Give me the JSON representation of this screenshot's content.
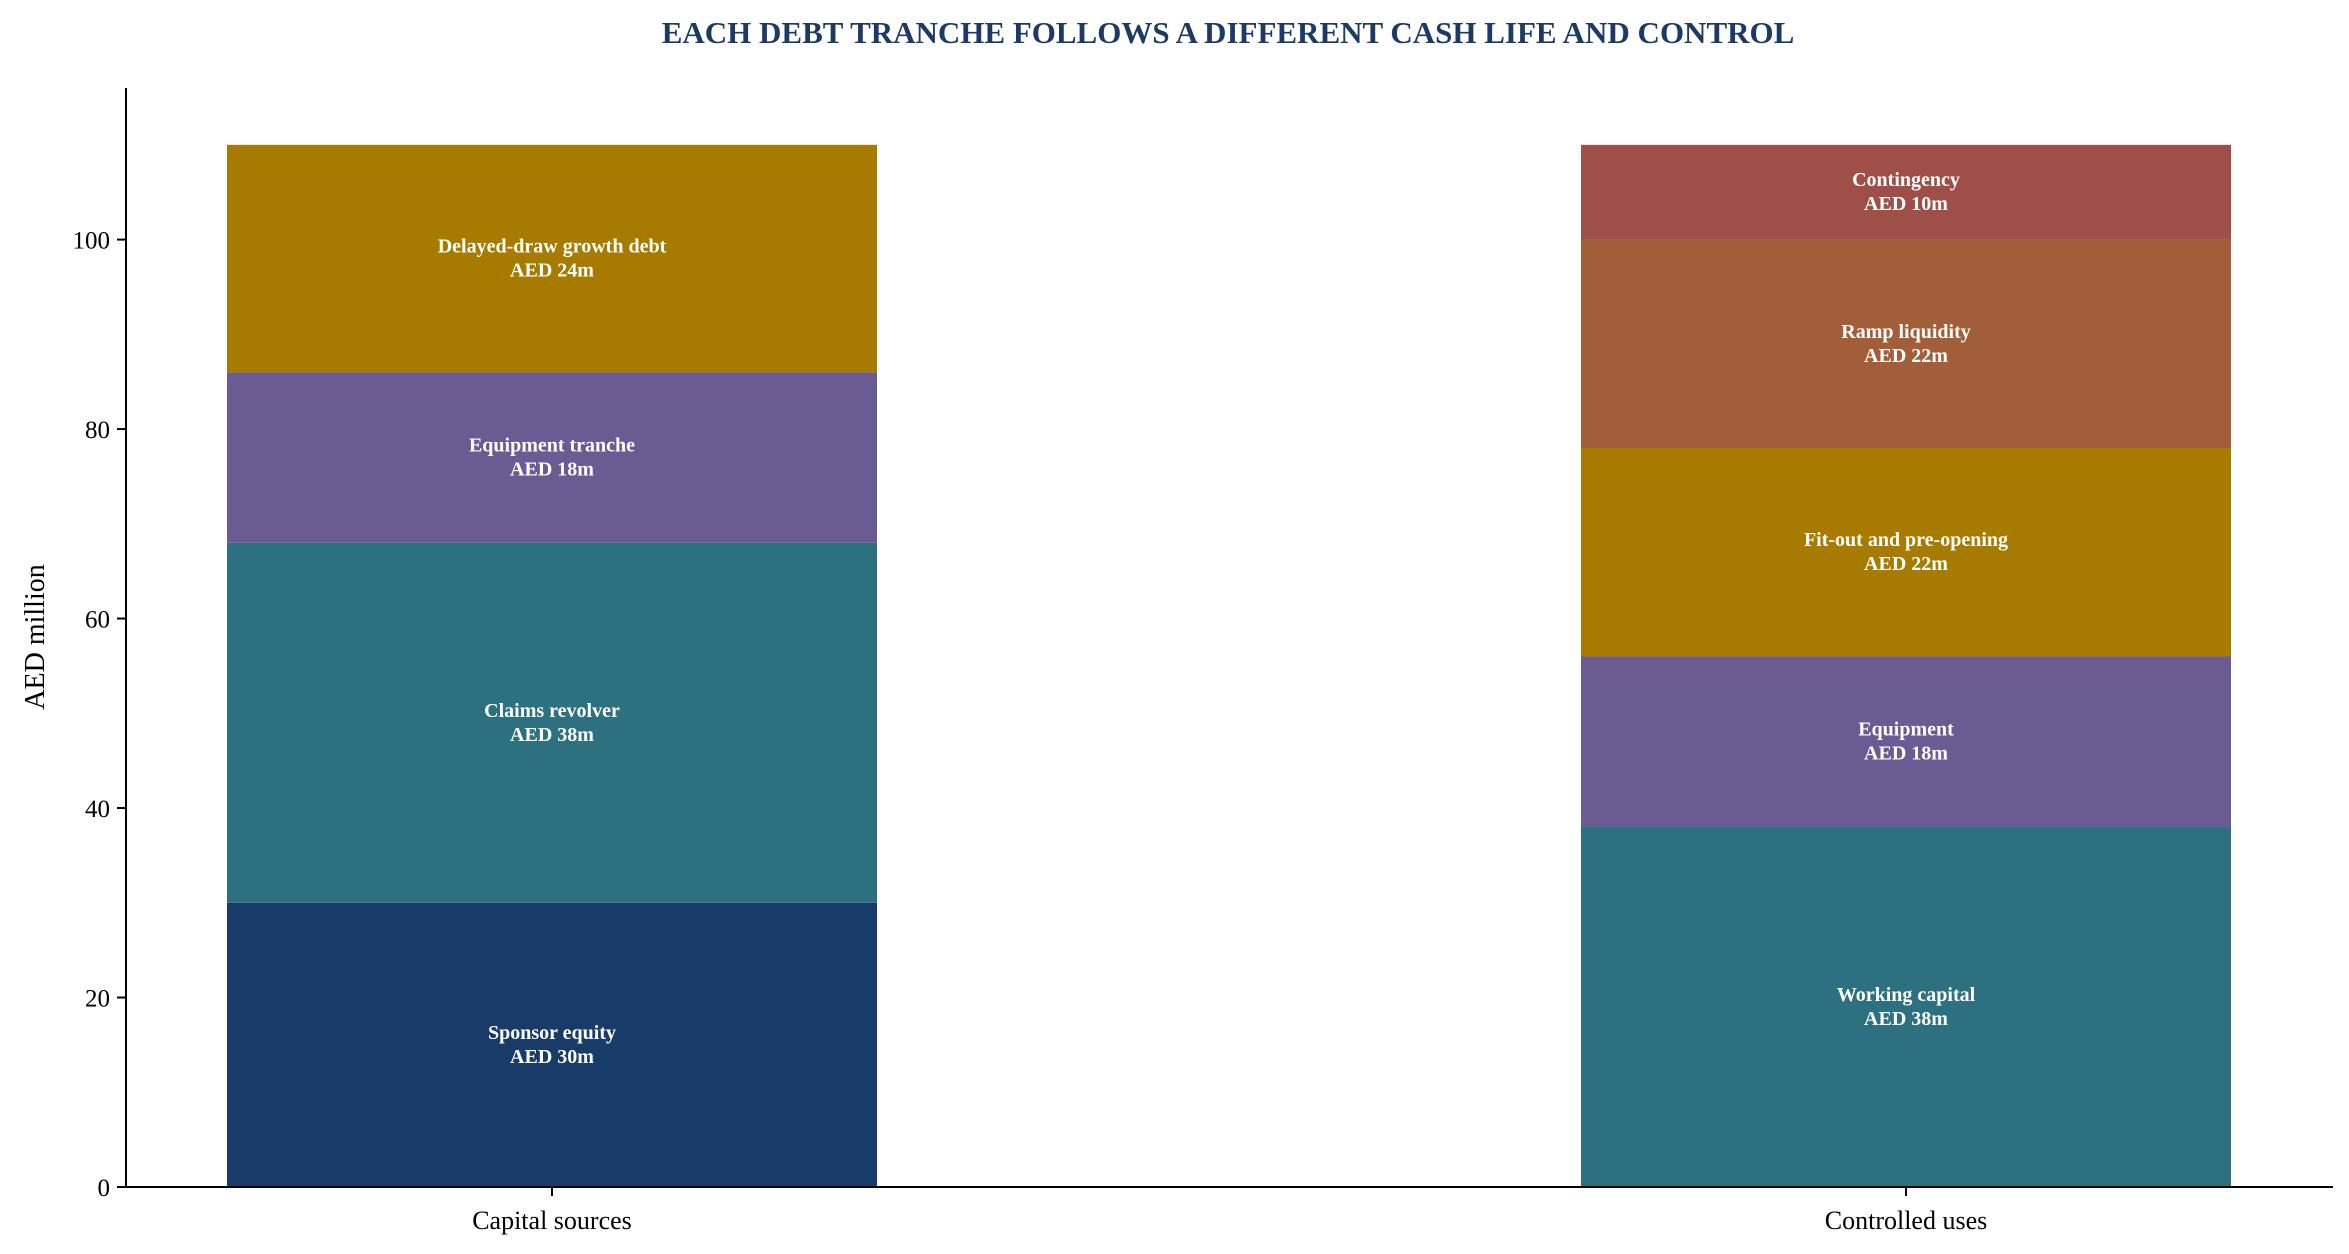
{
  "chart_data": {
    "type": "bar",
    "stacked": true,
    "title": "EACH DEBT TRANCHE FOLLOWS A DIFFERENT CASH LIFE AND CONTROL",
    "title_color": "#1b3a66",
    "xlabel": "",
    "ylabel": "AED million",
    "ylim": [
      0,
      116
    ],
    "yticks": [
      0,
      20,
      40,
      60,
      80,
      100
    ],
    "grid": false,
    "categories": [
      "Capital sources",
      "Controlled uses"
    ],
    "stacks": [
      {
        "category": "Capital sources",
        "segments": [
          {
            "name": "Sponsor equity",
            "value": 30,
            "label": "AED 30m",
            "color": "#183b69"
          },
          {
            "name": "Claims revolver",
            "value": 38,
            "label": "AED 38m",
            "color": "#2d7080"
          },
          {
            "name": "Equipment tranche",
            "value": 18,
            "label": "AED 18m",
            "color": "#6b5b93"
          },
          {
            "name": "Delayed-draw growth debt",
            "value": 24,
            "label": "AED 24m",
            "color": "#a77b00"
          }
        ]
      },
      {
        "category": "Controlled uses",
        "segments": [
          {
            "name": "Working capital",
            "value": 38,
            "label": "AED 38m",
            "color": "#2d7080"
          },
          {
            "name": "Equipment",
            "value": 18,
            "label": "AED 18m",
            "color": "#6b5b93"
          },
          {
            "name": "Fit-out and pre-opening",
            "value": 22,
            "label": "AED 22m",
            "color": "#a77b00"
          },
          {
            "name": "Ramp liquidity",
            "value": 22,
            "label": "AED 22m",
            "color": "#a15e38"
          },
          {
            "name": "Contingency",
            "value": 10,
            "label": "AED 10m",
            "color": "#9e5048"
          }
        ]
      }
    ]
  }
}
